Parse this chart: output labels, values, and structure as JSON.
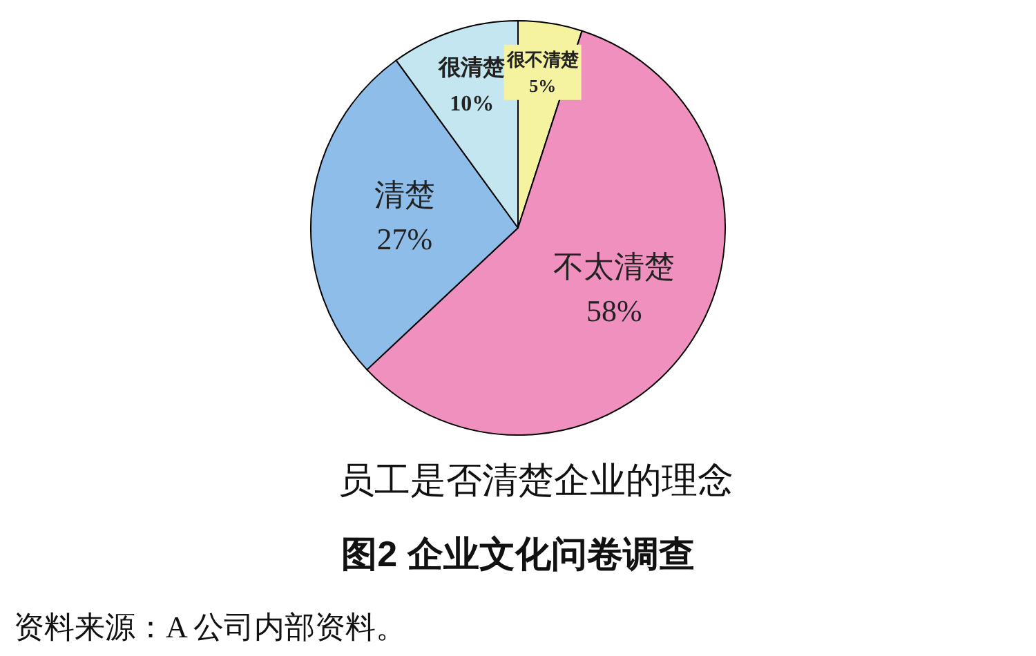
{
  "chart_data": {
    "type": "pie",
    "title": "员工是否清楚企业的理念",
    "subtitle": "图2 企业文化问卷调查",
    "annotations": [
      "资料来源：A 公司内部资料。"
    ],
    "categories": [
      "很不清楚",
      "不太清楚",
      "清楚",
      "很清楚"
    ],
    "values": [
      5,
      58,
      27,
      10
    ],
    "colors": [
      "#f5f2a0",
      "#f090bf",
      "#8dbde8",
      "#c4e6f0"
    ],
    "value_labels": [
      "5%",
      "58%",
      "27%",
      "10%"
    ]
  }
}
